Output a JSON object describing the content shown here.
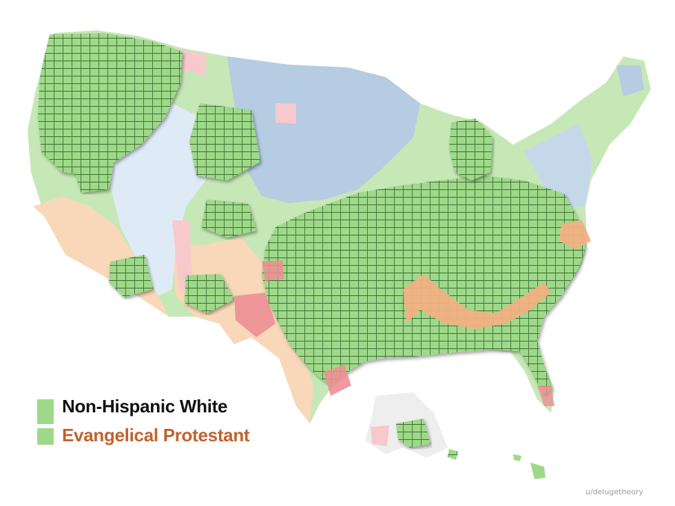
{
  "legend": {
    "items": [
      {
        "label": "Non-Hispanic White",
        "swatch": "#9ed98a",
        "text_color": "#111111"
      },
      {
        "label": "Evangelical Protestant",
        "swatch": "#9ed98a",
        "text_color": "#c0622f"
      }
    ]
  },
  "credit": "u/delugetheory",
  "colors": {
    "white_majority": "#9ed98a",
    "white_light": "#c6e8b6",
    "hispanic": "#f8d8b8",
    "hispanic_dark": "#f3b9a0",
    "red_area": "#ec8f93",
    "red_light": "#f7c9cc",
    "blue_catholic": "#b5cce3",
    "lds_area": "#deebf6",
    "overlap_orange": "#f1b183",
    "grid_line": "#3e6b32"
  },
  "icons": [
    "county-grid-pattern"
  ]
}
